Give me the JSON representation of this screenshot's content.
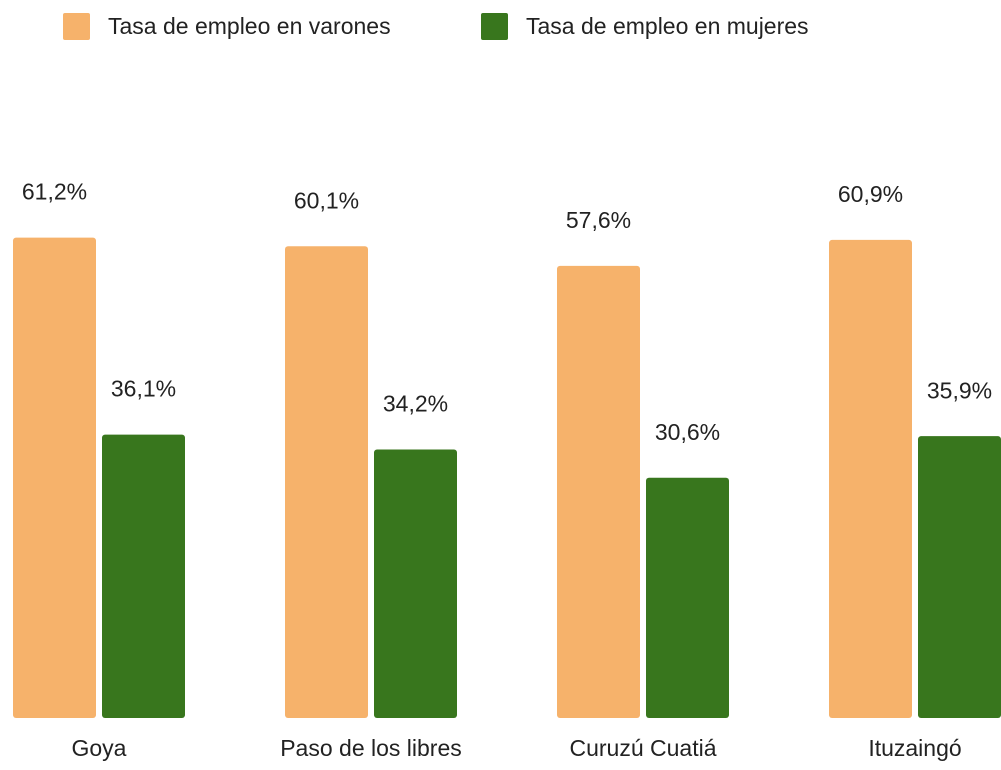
{
  "chart_data": {
    "type": "bar",
    "categories": [
      "Goya",
      "Paso de los libres",
      "Curuzú Cuatiá",
      "Ituzaingó"
    ],
    "series": [
      {
        "name": "Tasa de empleo en varones",
        "color": "#f6b26b",
        "values": [
          61.2,
          60.1,
          57.6,
          60.9
        ],
        "value_labels": [
          "61,2%",
          "60,1%",
          "57,6%",
          "60,9%"
        ]
      },
      {
        "name": "Tasa de empleo en mujeres",
        "color": "#38761d",
        "values": [
          36.1,
          34.2,
          30.6,
          35.9
        ],
        "value_labels": [
          "36,1%",
          "34,2%",
          "30,6%",
          "35,9%"
        ]
      }
    ],
    "legend": "top"
  }
}
